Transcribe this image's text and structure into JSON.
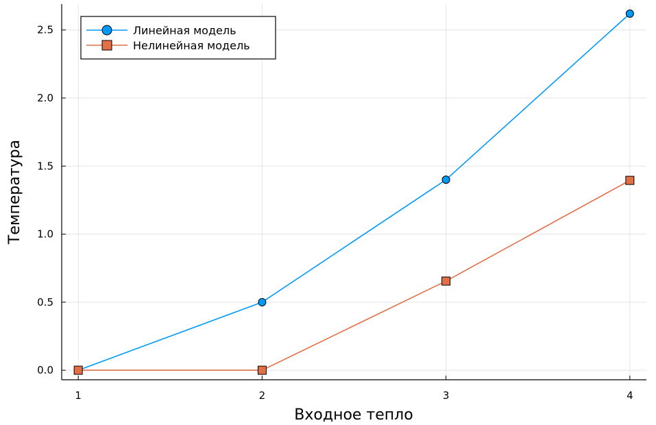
{
  "chart_data": {
    "type": "line",
    "title": "",
    "xlabel": "Входное тепло",
    "ylabel": "Температура",
    "x": [
      1,
      2,
      3,
      4
    ],
    "xticks": [
      1,
      2,
      3,
      4
    ],
    "xtick_labels": [
      "1",
      "2",
      "3",
      "4"
    ],
    "yticks": [
      0.0,
      0.5,
      1.0,
      1.5,
      2.0,
      2.5
    ],
    "ytick_labels": [
      "0.0",
      "0.5",
      "1.0",
      "1.5",
      "2.0",
      "2.5"
    ],
    "xlim": [
      0.91,
      4.09
    ],
    "ylim": [
      -0.07,
      2.69
    ],
    "grid": true,
    "legend_position": "top-left",
    "series": [
      {
        "name": "Линейная модель",
        "values": [
          0.0,
          0.5,
          1.4,
          2.62
        ],
        "color": "#009AFA",
        "marker": "circle"
      },
      {
        "name": "Нелинейная модель",
        "values": [
          0.0,
          0.0,
          0.655,
          1.395
        ],
        "color": "#E36F47",
        "marker": "square"
      }
    ]
  }
}
